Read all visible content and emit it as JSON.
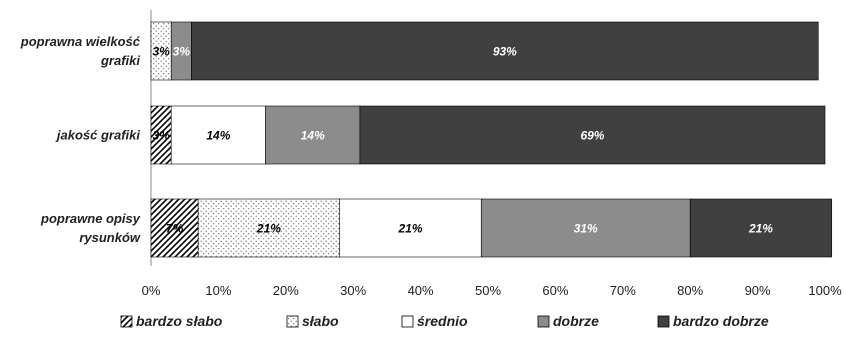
{
  "chart_data": {
    "type": "bar",
    "orientation": "horizontal",
    "stacked": true,
    "percent_stacked": true,
    "categories": [
      "poprawna wielkość grafiki",
      "jakość grafiki",
      "poprawne opisy rysunków"
    ],
    "category_label_lines": [
      [
        "poprawna wielkość",
        "grafiki"
      ],
      [
        "jakość grafiki"
      ],
      [
        "poprawne opisy",
        "rysunków"
      ]
    ],
    "series": [
      {
        "name": "bardzo słabo",
        "values": [
          0,
          3,
          7
        ],
        "labels": [
          "",
          "3%",
          "7%"
        ]
      },
      {
        "name": "słabo",
        "values": [
          3,
          0,
          21
        ],
        "labels": [
          "3%",
          "",
          "21%"
        ]
      },
      {
        "name": "średnio",
        "values": [
          0,
          14,
          21
        ],
        "labels": [
          "",
          "14%",
          "21%"
        ]
      },
      {
        "name": "dobrze",
        "values": [
          3,
          14,
          31
        ],
        "labels": [
          "3%",
          "14%",
          "31%"
        ]
      },
      {
        "name": "bardzo dobrze",
        "values": [
          93,
          69,
          21
        ],
        "labels": [
          "93%",
          "69%",
          "21%"
        ]
      }
    ],
    "xlim": [
      0,
      100
    ],
    "x_ticks": [
      "0%",
      "10%",
      "20%",
      "30%",
      "40%",
      "50%",
      "60%",
      "70%",
      "80%",
      "90%",
      "100%"
    ],
    "grid": false,
    "legend_position": "bottom",
    "title": "",
    "xlabel": "",
    "ylabel": ""
  },
  "colors": {
    "bardzo_slabo": "#ffffff",
    "slabo": "#ffffff",
    "srednio": "#ffffff",
    "dobrze": "#8c8c8c",
    "bardzo_dobrze": "#404040",
    "label_on_dark": "#ffffff",
    "label_on_light": "#000000",
    "axis": "#888888"
  },
  "fill_styles": [
    "diagonal-stripes",
    "dots",
    "solid-white",
    "solid-gray",
    "solid-dark"
  ]
}
